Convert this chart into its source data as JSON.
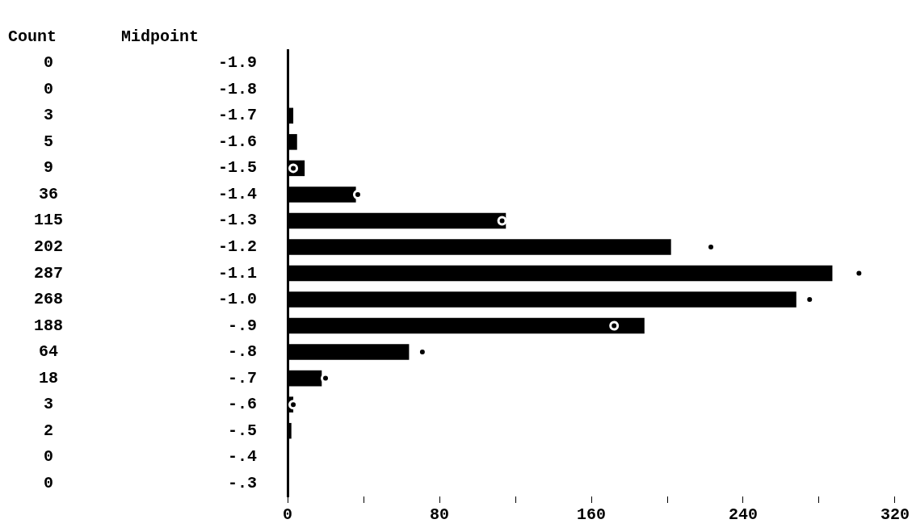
{
  "chart_data": {
    "type": "bar",
    "orientation": "horizontal",
    "ylabel": "Midpoint",
    "annotations": [
      "Count"
    ],
    "categories": [
      "-1.9",
      "-1.8",
      "-1.7",
      "-1.6",
      "-1.5",
      "-1.4",
      "-1.3",
      "-1.2",
      "-1.1",
      "-1.0",
      "-.9",
      "-.8",
      "-.7",
      "-.6",
      "-.5",
      "-.4",
      "-.3"
    ],
    "series": [
      {
        "color": "#000000",
        "values": [
          0,
          0,
          3,
          5,
          9,
          36,
          115,
          202,
          287,
          268,
          188,
          64,
          18,
          3,
          2,
          0,
          0
        ],
        "value_labels": [
          "0",
          "0",
          "3",
          "5",
          "9",
          "36",
          "115",
          "202",
          "287",
          "268",
          "188",
          "64",
          "18",
          "3",
          "2",
          "0",
          "0"
        ]
      },
      {
        "type": "scatter",
        "color": "#000000",
        "values": [
          null,
          null,
          null,
          null,
          3,
          37,
          113,
          223,
          301,
          275,
          172,
          71,
          20,
          3,
          null,
          null,
          null
        ]
      }
    ],
    "marker": "circle",
    "xlim": [
      0,
      320
    ],
    "xticks": [
      0,
      {
        "value": 40,
        "label": null
      },
      80,
      {
        "value": 120,
        "label": null
      },
      160,
      {
        "value": 200,
        "label": null
      },
      240,
      {
        "value": 280,
        "label": null
      },
      320
    ]
  }
}
